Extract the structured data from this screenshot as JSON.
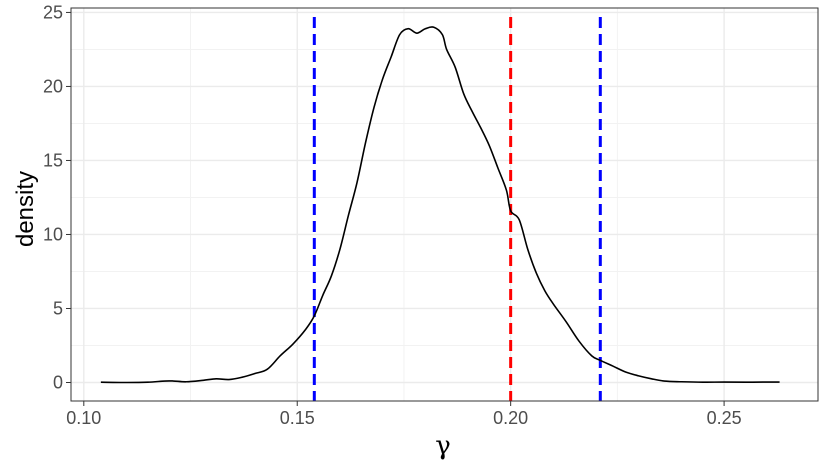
{
  "chart_data": {
    "type": "line",
    "title": "",
    "xlabel": "γ",
    "ylabel": "density",
    "xlim": [
      0.097,
      0.272
    ],
    "ylim": [
      -1.25,
      25.3
    ],
    "x_ticks": [
      "0.10",
      "0.15",
      "0.20",
      "0.25"
    ],
    "x_tick_values": [
      0.1,
      0.15,
      0.2,
      0.25
    ],
    "y_ticks": [
      "0",
      "5",
      "10",
      "15",
      "20",
      "25"
    ],
    "y_tick_values": [
      0,
      5,
      10,
      15,
      20,
      25
    ],
    "grid": true,
    "series": [
      {
        "color": "#000000",
        "x": [
          0.104,
          0.11,
          0.115,
          0.119,
          0.121,
          0.124,
          0.128,
          0.131,
          0.134,
          0.137,
          0.14,
          0.143,
          0.146,
          0.149,
          0.152,
          0.154,
          0.156,
          0.158,
          0.16,
          0.162,
          0.164,
          0.166,
          0.168,
          0.17,
          0.172,
          0.174,
          0.176,
          0.178,
          0.18,
          0.182,
          0.184,
          0.185,
          0.187,
          0.189,
          0.191,
          0.193,
          0.195,
          0.197,
          0.199,
          0.2,
          0.202,
          0.204,
          0.206,
          0.208,
          0.21,
          0.213,
          0.216,
          0.219,
          0.221,
          0.224,
          0.227,
          0.23,
          0.233,
          0.236,
          0.24,
          0.245,
          0.25,
          0.255,
          0.26,
          0.263
        ],
        "y": [
          0.02,
          0.0,
          0.02,
          0.1,
          0.1,
          0.05,
          0.15,
          0.25,
          0.2,
          0.35,
          0.6,
          0.9,
          1.8,
          2.6,
          3.6,
          4.5,
          5.9,
          7.2,
          9.0,
          11.3,
          13.5,
          16.2,
          18.6,
          20.5,
          22.0,
          23.5,
          23.9,
          23.6,
          23.9,
          24.0,
          23.5,
          22.5,
          21.3,
          19.5,
          18.3,
          17.2,
          16.0,
          14.5,
          13.0,
          11.6,
          11.0,
          9.0,
          7.4,
          6.2,
          5.3,
          4.1,
          2.8,
          1.8,
          1.5,
          1.1,
          0.7,
          0.45,
          0.25,
          0.1,
          0.05,
          0.02,
          0.03,
          0.02,
          0.03,
          0.03
        ]
      }
    ],
    "vlines": [
      {
        "x": 0.154,
        "color": "#0000ff",
        "style": "dashed"
      },
      {
        "x": 0.2,
        "color": "#ff0000",
        "style": "dashed"
      },
      {
        "x": 0.221,
        "color": "#0000ff",
        "style": "dashed"
      }
    ]
  }
}
